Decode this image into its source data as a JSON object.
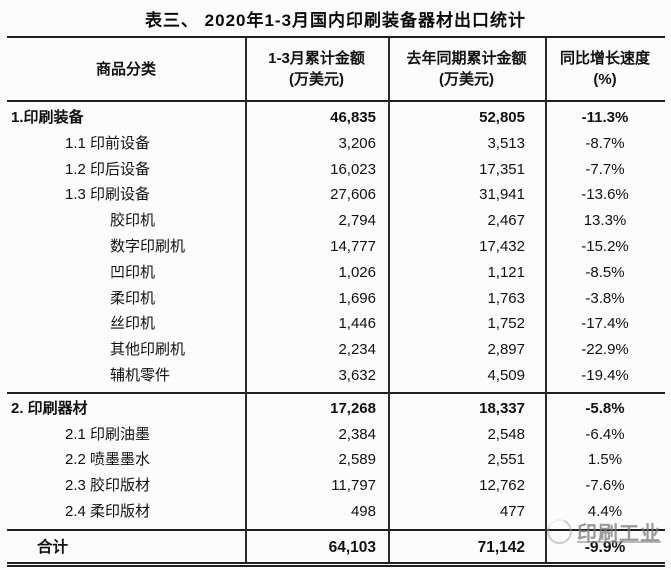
{
  "title": "表三、 2020年1-3月国内印刷装备器材出口统计",
  "header": {
    "columns_display": [
      "商品分类",
      "1-3月累计金额\n(万美元)",
      "去年同期累计金额\n(万美元)",
      "同比增长速度\n(%)"
    ]
  },
  "chart_data": {
    "type": "table",
    "title": "表三、 2020年1-3月国内印刷装备器材出口统计",
    "columns": [
      "商品分类",
      "1-3月累计金额(万美元)",
      "去年同期累计金额(万美元)",
      "同比增长速度(%)"
    ],
    "sections": [
      {
        "name": "印刷装备",
        "rows": [
          {
            "label": "1.印刷装备",
            "indent": 0,
            "bold": true,
            "current": "46,835",
            "previous": "52,805",
            "growth": "-11.3%"
          },
          {
            "label": "1.1 印前设备",
            "indent": 1,
            "bold": false,
            "current": "3,206",
            "previous": "3,513",
            "growth": "-8.7%"
          },
          {
            "label": "1.2 印后设备",
            "indent": 1,
            "bold": false,
            "current": "16,023",
            "previous": "17,351",
            "growth": "-7.7%"
          },
          {
            "label": "1.3 印刷设备",
            "indent": 1,
            "bold": false,
            "current": "27,606",
            "previous": "31,941",
            "growth": "-13.6%"
          },
          {
            "label": "胶印机",
            "indent": 2,
            "bold": false,
            "current": "2,794",
            "previous": "2,467",
            "growth": "13.3%"
          },
          {
            "label": "数字印刷机",
            "indent": 2,
            "bold": false,
            "current": "14,777",
            "previous": "17,432",
            "growth": "-15.2%"
          },
          {
            "label": "凹印机",
            "indent": 2,
            "bold": false,
            "current": "1,026",
            "previous": "1,121",
            "growth": "-8.5%"
          },
          {
            "label": "柔印机",
            "indent": 2,
            "bold": false,
            "current": "1,696",
            "previous": "1,763",
            "growth": "-3.8%"
          },
          {
            "label": "丝印机",
            "indent": 2,
            "bold": false,
            "current": "1,446",
            "previous": "1,752",
            "growth": "-17.4%"
          },
          {
            "label": "其他印刷机",
            "indent": 2,
            "bold": false,
            "current": "2,234",
            "previous": "2,897",
            "growth": "-22.9%"
          },
          {
            "label": "辅机零件",
            "indent": 2,
            "bold": false,
            "current": "3,632",
            "previous": "4,509",
            "growth": "-19.4%"
          }
        ]
      },
      {
        "name": "印刷器材",
        "rows": [
          {
            "label": "2. 印刷器材",
            "indent": 0,
            "bold": true,
            "current": "17,268",
            "previous": "18,337",
            "growth": "-5.8%"
          },
          {
            "label": "2.1 印刷油墨",
            "indent": 1,
            "bold": false,
            "current": "2,384",
            "previous": "2,548",
            "growth": "-6.4%"
          },
          {
            "label": "2.2 喷墨墨水",
            "indent": 1,
            "bold": false,
            "current": "2,589",
            "previous": "2,551",
            "growth": "1.5%"
          },
          {
            "label": "2.3 胶印版材",
            "indent": 1,
            "bold": false,
            "current": "11,797",
            "previous": "12,762",
            "growth": "-7.6%"
          },
          {
            "label": "2.4 柔印版材",
            "indent": 1,
            "bold": false,
            "current": "498",
            "previous": "477",
            "growth": "4.4%"
          }
        ]
      }
    ],
    "total": {
      "label": "合计",
      "current": "64,103",
      "previous": "71,142",
      "growth": "-9.9%"
    }
  },
  "watermark": {
    "text": "印刷工业"
  }
}
